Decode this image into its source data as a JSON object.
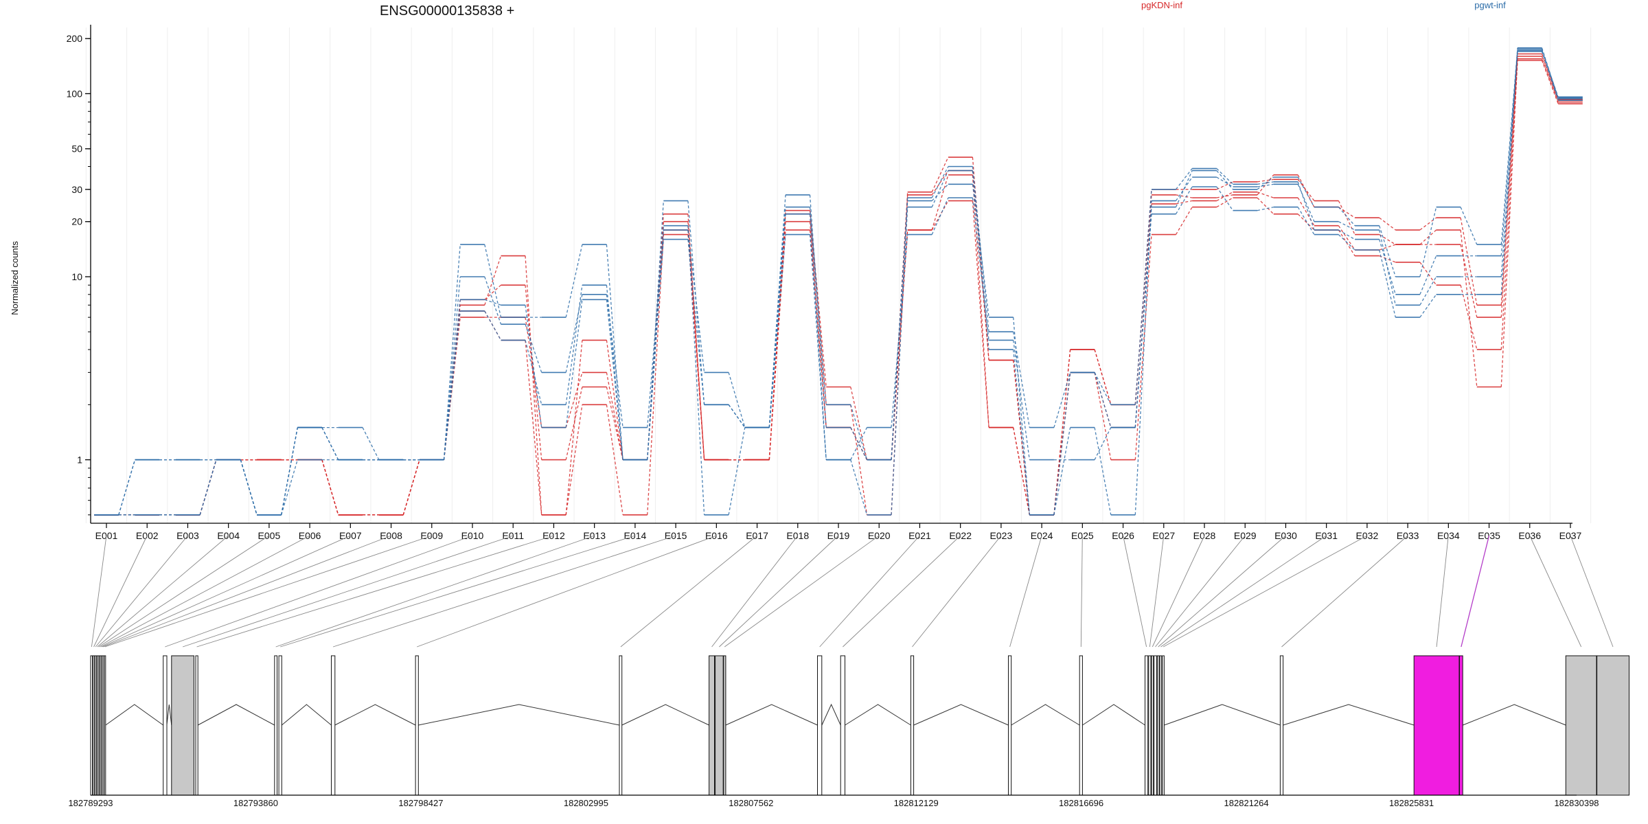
{
  "chart_data": {
    "type": "line",
    "title": "ENSG00000135838 +",
    "ylabel": "Normalized counts",
    "xlabel": "",
    "y_scale": "log",
    "ylim": [
      0.45,
      230
    ],
    "yticks": [
      1,
      10,
      20,
      30,
      50,
      100,
      200
    ],
    "grid": "vertical",
    "legend_position": "top",
    "legend": [
      {
        "name": "pgKDN-inf",
        "color": "#d62728"
      },
      {
        "name": "pgwt-inf",
        "color": "#2b6ca8"
      }
    ],
    "categories": [
      "E001",
      "E002",
      "E003",
      "E004",
      "E005",
      "E006",
      "E007",
      "E008",
      "E009",
      "E010",
      "E011",
      "E012",
      "E013",
      "E014",
      "E015",
      "E016",
      "E017",
      "E018",
      "E019",
      "E020",
      "E021",
      "E022",
      "E023",
      "E024",
      "E025",
      "E026",
      "E027",
      "E028",
      "E029",
      "E030",
      "E031",
      "E032",
      "E033",
      "E034",
      "E035",
      "E036",
      "E037"
    ],
    "series": [
      {
        "group": "pgKDN-inf",
        "color": "#d62728",
        "values": [
          0.5,
          0.5,
          0.5,
          1,
          1,
          1,
          0.5,
          0.5,
          1,
          7.5,
          9,
          1,
          2.5,
          1,
          22,
          1,
          1,
          23,
          2.5,
          1,
          29,
          45,
          3.5,
          0.5,
          4,
          2,
          28,
          27,
          28,
          36,
          24,
          21,
          18,
          21,
          7,
          160,
          92
        ]
      },
      {
        "group": "pgKDN-inf",
        "color": "#d62728",
        "values": [
          0.5,
          0.5,
          0.5,
          1,
          1,
          1,
          0.5,
          0.5,
          1,
          7,
          13,
          0.5,
          4.5,
          1,
          20,
          1,
          1,
          22,
          2,
          0.5,
          28,
          38,
          3.5,
          0.5,
          4,
          2,
          30,
          30,
          33,
          34,
          26,
          17,
          15,
          15,
          6,
          165,
          93
        ]
      },
      {
        "group": "pgKDN-inf",
        "color": "#d62728",
        "values": [
          0.5,
          0.5,
          0.5,
          1,
          1,
          1,
          0.5,
          0.5,
          1,
          6.5,
          4.5,
          0.5,
          2,
          0.5,
          17,
          1,
          1,
          18,
          1.5,
          1,
          18,
          26,
          1.5,
          0.5,
          3,
          1,
          17,
          24,
          27,
          22,
          18,
          13,
          12,
          9,
          4,
          152,
          88
        ]
      },
      {
        "group": "pgKDN-inf",
        "color": "#d62728",
        "values": [
          0.5,
          0.5,
          0.5,
          1,
          1,
          1,
          0.5,
          0.5,
          1,
          6,
          6,
          1.5,
          3,
          1,
          18,
          1,
          1,
          20,
          1.5,
          1,
          18,
          36,
          1.5,
          0.5,
          3,
          1.5,
          25,
          26,
          29,
          27,
          19,
          14,
          15,
          18,
          2.5,
          155,
          90
        ]
      },
      {
        "group": "pgwt-inf",
        "color": "#2b6ca8",
        "values": [
          0.5,
          1,
          1,
          1,
          0.5,
          1,
          1,
          1,
          1,
          15,
          6,
          6,
          15,
          1,
          26,
          2,
          1.5,
          28,
          1.5,
          1,
          26,
          32,
          6,
          0.5,
          3,
          1.5,
          24,
          38,
          30,
          35,
          24,
          19,
          10,
          24,
          15,
          175,
          95
        ]
      },
      {
        "group": "pgwt-inf",
        "color": "#2b6ca8",
        "values": [
          0.5,
          1,
          1,
          1,
          0.5,
          1.5,
          1.5,
          1,
          1,
          10,
          5.5,
          3,
          8,
          1.5,
          18,
          3,
          1.5,
          24,
          2,
          1,
          27,
          40,
          5,
          1.5,
          3,
          2,
          30,
          39,
          32,
          33,
          18,
          16,
          8,
          13,
          13,
          172,
          96
        ]
      },
      {
        "group": "pgwt-inf",
        "color": "#2b6ca8",
        "values": [
          0.5,
          0.5,
          0.5,
          1,
          0.5,
          1.5,
          1,
          1,
          1,
          6.5,
          4.5,
          2,
          9,
          1,
          16,
          2,
          1.5,
          17,
          1,
          1.5,
          17,
          27,
          4.5,
          1,
          1,
          1.5,
          22,
          31,
          23,
          24,
          17,
          14,
          6,
          8,
          8,
          178,
          94
        ]
      },
      {
        "group": "pgwt-inf",
        "color": "#2b6ca8",
        "values": [
          0.5,
          0.5,
          0.5,
          1,
          0.5,
          1.5,
          1,
          1,
          1,
          7.5,
          7,
          1.5,
          7.5,
          1,
          19,
          0.5,
          1.5,
          22,
          1,
          0.5,
          24,
          38,
          4,
          0.5,
          1.5,
          0.5,
          26,
          35,
          31,
          32,
          20,
          18,
          7,
          10,
          10,
          170,
          92
        ]
      }
    ],
    "gene_model": {
      "coordinate_labels": [
        "182789293",
        "182793860",
        "182798427",
        "182802995",
        "182807562",
        "182812129",
        "182816696",
        "182821264",
        "182825831",
        "182830398"
      ],
      "exons": [
        {
          "id": "E001",
          "start": 182789293,
          "end": 182789345,
          "fill": "#ffffff"
        },
        {
          "id": "E002",
          "start": 182789360,
          "end": 182789400,
          "fill": "#ffffff"
        },
        {
          "id": "E003",
          "start": 182789410,
          "end": 182789450,
          "fill": "#ffffff"
        },
        {
          "id": "E004",
          "start": 182789460,
          "end": 182789490,
          "fill": "#ffffff"
        },
        {
          "id": "E005",
          "start": 182789500,
          "end": 182789530,
          "fill": "#ffffff"
        },
        {
          "id": "E006",
          "start": 182789545,
          "end": 182789575,
          "fill": "#ffffff"
        },
        {
          "id": "E007",
          "start": 182789585,
          "end": 182789610,
          "fill": "#ffffff"
        },
        {
          "id": "E008",
          "start": 182789620,
          "end": 182789660,
          "fill": "#ffffff"
        },
        {
          "id": "E009",
          "start": 182789670,
          "end": 182789700,
          "fill": "#ffffff"
        },
        {
          "id": "E010",
          "start": 182791300,
          "end": 182791400,
          "fill": "#ffffff"
        },
        {
          "id": "E011",
          "start": 182791530,
          "end": 182792150,
          "fill": "#c8c8c8"
        },
        {
          "id": "E012",
          "start": 182792200,
          "end": 182792260,
          "fill": "#ffffff"
        },
        {
          "id": "E013",
          "start": 182794380,
          "end": 182794450,
          "fill": "#ffffff"
        },
        {
          "id": "E014",
          "start": 182794500,
          "end": 182794580,
          "fill": "#ffffff"
        },
        {
          "id": "E015",
          "start": 182795950,
          "end": 182796050,
          "fill": "#ffffff"
        },
        {
          "id": "E016",
          "start": 182798280,
          "end": 182798360,
          "fill": "#ffffff"
        },
        {
          "id": "E017",
          "start": 182803920,
          "end": 182803990,
          "fill": "#ffffff"
        },
        {
          "id": "E018",
          "start": 182806400,
          "end": 182806550,
          "fill": "#c8c8c8"
        },
        {
          "id": "E019",
          "start": 182806570,
          "end": 182806790,
          "fill": "#c8c8c8"
        },
        {
          "id": "E020",
          "start": 182806800,
          "end": 182806860,
          "fill": "#c8c8c8"
        },
        {
          "id": "E021",
          "start": 182809400,
          "end": 182809520,
          "fill": "#ffffff"
        },
        {
          "id": "E022",
          "start": 182810040,
          "end": 182810160,
          "fill": "#ffffff"
        },
        {
          "id": "E023",
          "start": 182811980,
          "end": 182812060,
          "fill": "#ffffff"
        },
        {
          "id": "E024",
          "start": 182814680,
          "end": 182814760,
          "fill": "#ffffff"
        },
        {
          "id": "E025",
          "start": 182816650,
          "end": 182816730,
          "fill": "#ffffff"
        },
        {
          "id": "E026",
          "start": 182818460,
          "end": 182818540,
          "fill": "#ffffff"
        },
        {
          "id": "E027",
          "start": 182818560,
          "end": 182818620,
          "fill": "#ffffff"
        },
        {
          "id": "E028",
          "start": 182818640,
          "end": 182818690,
          "fill": "#ffffff"
        },
        {
          "id": "E029",
          "start": 182818710,
          "end": 182818780,
          "fill": "#ffffff"
        },
        {
          "id": "E030",
          "start": 182818800,
          "end": 182818850,
          "fill": "#ffffff"
        },
        {
          "id": "E031",
          "start": 182818870,
          "end": 182818920,
          "fill": "#ffffff"
        },
        {
          "id": "E032",
          "start": 182818940,
          "end": 182818990,
          "fill": "#ffffff"
        },
        {
          "id": "E033",
          "start": 182822200,
          "end": 182822280,
          "fill": "#ffffff"
        },
        {
          "id": "E034",
          "start": 182825900,
          "end": 182827150,
          "fill": "#f01de0"
        },
        {
          "id": "E035",
          "start": 182827160,
          "end": 182827250,
          "fill": "#f01de0"
        },
        {
          "id": "E036",
          "start": 182830100,
          "end": 182830950,
          "fill": "#c8c8c8"
        },
        {
          "id": "E037",
          "start": 182830960,
          "end": 182831850,
          "fill": "#c8c8c8"
        }
      ]
    }
  }
}
